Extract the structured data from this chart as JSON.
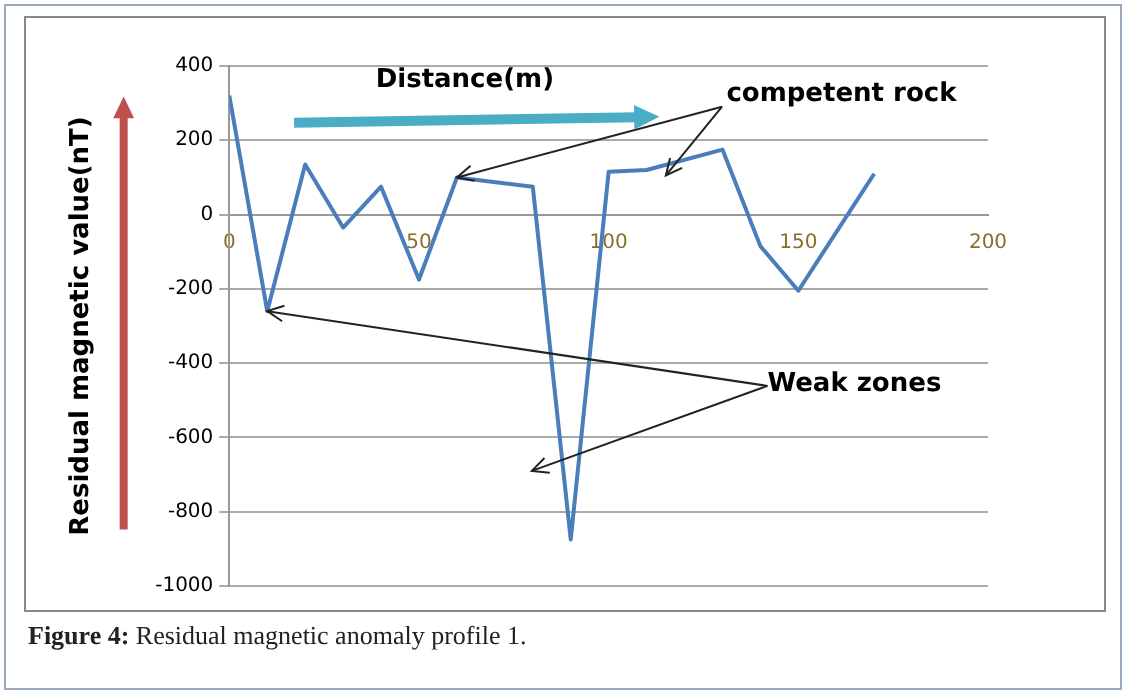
{
  "chart_data": {
    "type": "line",
    "xlabel": "Distance(m)",
    "ylabel": "Residual magnetic value(nT)",
    "x": [
      0,
      10,
      20,
      30,
      40,
      50,
      60,
      80,
      90,
      100,
      110,
      130,
      140,
      150,
      170
    ],
    "series": [
      {
        "color": "#4a7ebb",
        "values": [
          320,
          -260,
          135,
          -35,
          75,
          -175,
          100,
          75,
          -875,
          115,
          120,
          175,
          -85,
          -205,
          110
        ]
      }
    ],
    "xlim": [
      0,
      200
    ],
    "xticks": [
      0,
      50,
      100,
      150,
      200
    ],
    "ylim": [
      -1000,
      400
    ],
    "yticks": [
      -1000,
      -800,
      -600,
      -400,
      -200,
      0,
      200,
      400
    ],
    "grid": "y",
    "legend": false,
    "marker": "none",
    "line_style": "solid",
    "annotations": [
      {
        "text": "competent rock",
        "x": 60,
        "y": 100
      },
      {
        "text": "Weak zones",
        "x": 10,
        "y": -260
      },
      "Figure 4: Residual magnetic anomaly profile 1."
    ]
  }
}
